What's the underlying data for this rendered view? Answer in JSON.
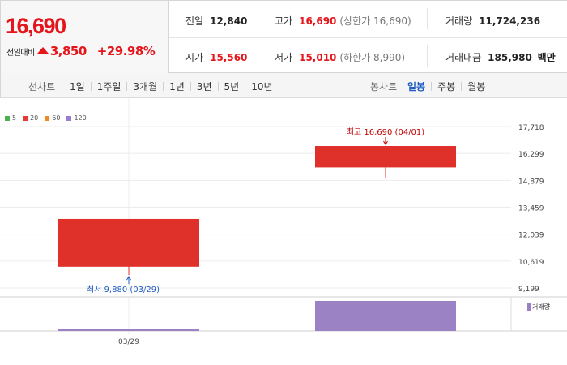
{
  "quote": {
    "price": "16,690",
    "change_label": "전일대비",
    "change": "3,850",
    "change_pct": "+29.98%",
    "prev_close_label": "전일",
    "prev_close": "12,840",
    "high_label": "고가",
    "high": "16,690",
    "high_limit": "(상한가 16,690)",
    "volume_label": "거래량",
    "volume": "11,724,236",
    "open_label": "시가",
    "open": "15,560",
    "low_label": "저가",
    "low": "15,010",
    "low_limit": "(하한가 8,990)",
    "trade_value_label": "거래대금",
    "trade_value": "185,980",
    "trade_value_unit": "백만",
    "colors": {
      "up": "#e5151b",
      "down": "#1f5bc1"
    }
  },
  "toolbar": {
    "line_label": "선차트",
    "line_periods": [
      "1일",
      "1주일",
      "3개월",
      "1년",
      "3년",
      "5년",
      "10년"
    ],
    "candle_label": "봉차트",
    "candle_periods": [
      "일봉",
      "주봉",
      "월봉"
    ],
    "candle_active": "일봉"
  },
  "legend": [
    {
      "label": "5",
      "color": "#4caf50"
    },
    {
      "label": "20",
      "color": "#e53935"
    },
    {
      "label": "60",
      "color": "#f08a24"
    },
    {
      "label": "120",
      "color": "#9c7ccc"
    }
  ],
  "chart_data": {
    "type": "candlestick",
    "y_ticks": [
      17718,
      16299,
      14879,
      13459,
      12039,
      10619,
      9199
    ],
    "y_tick_labels": [
      "17,718",
      "16,299",
      "14,879",
      "13,459",
      "12,039",
      "10,619",
      "9,199"
    ],
    "ylim": [
      9199,
      17718
    ],
    "x_labels": [
      "03/29"
    ],
    "candles": [
      {
        "date": "03/29",
        "open": 10320,
        "high": 12840,
        "low": 9880,
        "close": 12840,
        "volume": 210000,
        "color": "#e0302a"
      },
      {
        "date": "04/01",
        "open": 15560,
        "high": 16690,
        "low": 15010,
        "close": 16690,
        "volume": 11724236,
        "color": "#e0302a"
      }
    ],
    "volume_color": "#9b82c4",
    "volume_legend": "거래량",
    "annotations": {
      "max": {
        "text": "최고 16,690 (04/01)",
        "color": "#c00000"
      },
      "min": {
        "text": "최저 9,880 (03/29)",
        "color": "#1f5bc1"
      }
    }
  }
}
